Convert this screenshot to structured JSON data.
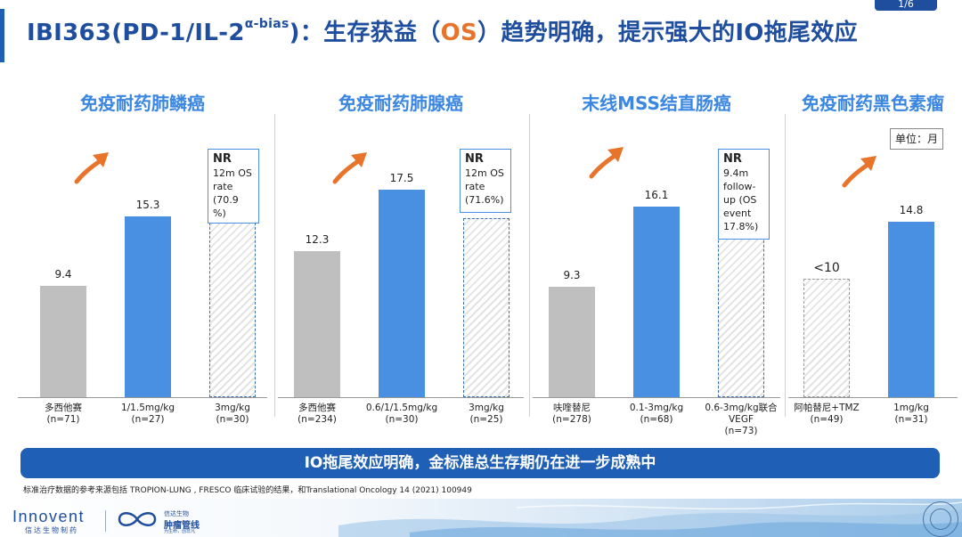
{
  "page_number": "1/6",
  "title": {
    "prefix": "IBI363(PD-1/IL-2",
    "superscript": "α-bias",
    "middle": ")：生存获益（",
    "highlight": "OS",
    "suffix": "）趋势明确，提示强大的IO拖尾效应"
  },
  "unit_label": "单位：月",
  "banner": "IO拖尾效应明确，金标准总生存期仍在进一步成熟中",
  "footnote": "标准治疗数据的参考来源包括 TROPION-LUNG , FRESCO 临床试验的结果，和Translational Oncology 14 (2021) 100949",
  "footer": {
    "brand": "Innovent",
    "brand_cn": "信达生物制药",
    "logo2_line1": "信达生物",
    "logo2_line2": "肿瘤管线",
    "logo2_line3": "为生命，创非凡"
  },
  "colors": {
    "blue": "#4a90e2",
    "grey": "#bfbfbf",
    "title": "#1f4e9e",
    "accent": "#e8742c"
  },
  "chart_data": [
    {
      "type": "bar",
      "title": "免疫耐药肺鳞癌",
      "ylabel": "",
      "categories": [
        "多西他赛\n(n=71)",
        "1/1.5mg/kg\n(n=27)",
        "3mg/kg\n(n=30)"
      ],
      "values": [
        9.4,
        15.3,
        null
      ],
      "value_labels": [
        "9.4",
        "15.3",
        ""
      ],
      "styles": [
        "grey",
        "blue",
        "hatch"
      ],
      "nr_box": {
        "bar_index": 2,
        "heading": "NR",
        "lines": [
          "12m OS",
          "rate",
          "(70.9 %)"
        ]
      }
    },
    {
      "type": "bar",
      "title": "免疫耐药肺腺癌",
      "ylabel": "",
      "categories": [
        "多西他赛\n(n=234)",
        "0.6/1/1.5mg/kg\n(n=30)",
        "3mg/kg\n(n=25)"
      ],
      "values": [
        12.3,
        17.5,
        null
      ],
      "value_labels": [
        "12.3",
        "17.5",
        ""
      ],
      "styles": [
        "grey",
        "blue",
        "hatch"
      ],
      "nr_box": {
        "bar_index": 2,
        "heading": "NR",
        "lines": [
          "12m OS",
          "rate",
          "(71.6%)"
        ]
      }
    },
    {
      "type": "bar",
      "title": "末线MSS结直肠癌",
      "ylabel": "",
      "categories": [
        "呋喹替尼\n(n=278)",
        "0.1-3mg/kg\n(n=68)",
        "0.6-3mg/kg联合\nVEGF\n(n=73)"
      ],
      "values": [
        9.3,
        16.1,
        null
      ],
      "value_labels": [
        "9.3",
        "16.1",
        ""
      ],
      "styles": [
        "grey",
        "blue",
        "hatch"
      ],
      "nr_box": {
        "bar_index": 2,
        "heading": "NR",
        "lines": [
          "9.4m",
          "follow-",
          "up (OS",
          "event",
          "17.8%)"
        ]
      }
    },
    {
      "type": "bar",
      "title": "免疫耐药黑色素瘤",
      "ylabel": "",
      "categories": [
        "阿帕替尼+TMZ\n(n=49)",
        "1mg/kg\n(n=31)"
      ],
      "values": [
        10,
        14.8
      ],
      "value_labels": [
        "<10",
        "14.8"
      ],
      "styles": [
        "hatch-grey",
        "blue"
      ],
      "nr_box": null
    }
  ]
}
